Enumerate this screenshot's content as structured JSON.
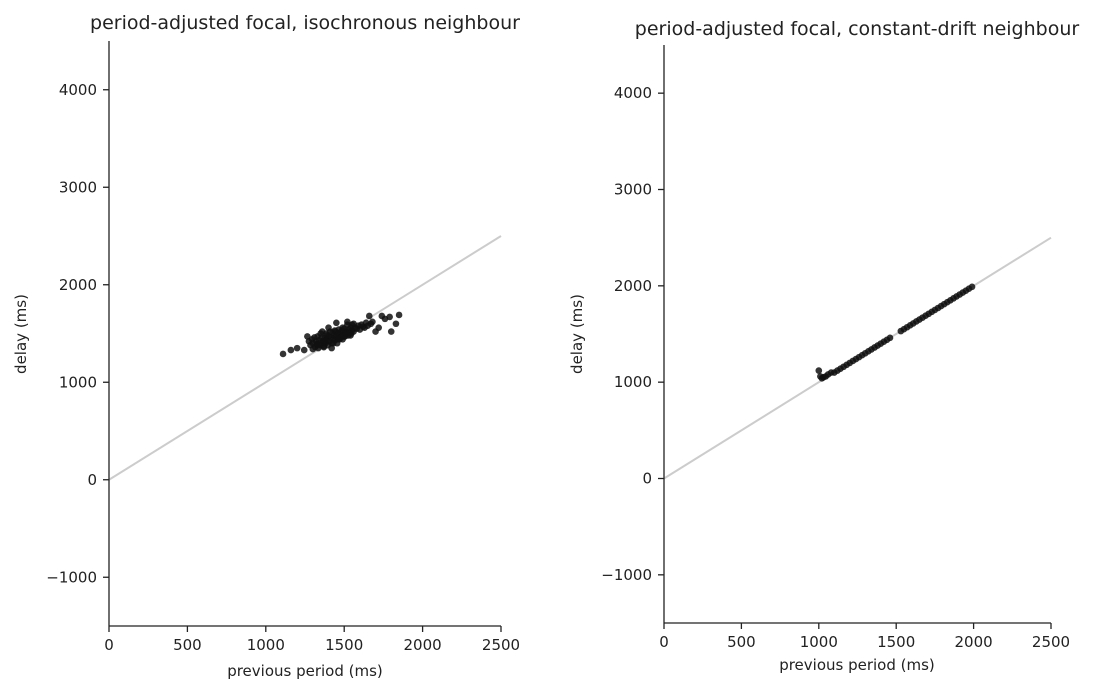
{
  "chart_data": [
    {
      "type": "scatter",
      "title": "period-adjusted focal, isochronous neighbour",
      "xlabel": "previous period (ms)",
      "ylabel": "delay (ms)",
      "xlim": [
        0,
        2500
      ],
      "ylim": [
        -1500,
        4500
      ],
      "xticks": [
        0,
        500,
        1000,
        1500,
        2000,
        2500
      ],
      "xtick_labels": [
        "0",
        "500",
        "1000",
        "1500",
        "2000",
        "2500"
      ],
      "yticks": [
        -1000,
        0,
        1000,
        2000,
        3000,
        4000
      ],
      "ytick_labels": [
        "−1000",
        "0",
        "1000",
        "2000",
        "3000",
        "4000"
      ],
      "grid": false,
      "reference_line": {
        "x": [
          0,
          2500
        ],
        "y": [
          0,
          2500
        ],
        "color": "#cccccc"
      },
      "marker_color": "#111111",
      "series": [
        {
          "x": [
            1110,
            1160,
            1200,
            1245,
            1265,
            1275,
            1285,
            1295,
            1300,
            1310,
            1315,
            1320,
            1325,
            1330,
            1335,
            1340,
            1345,
            1350,
            1355,
            1360,
            1365,
            1370,
            1375,
            1380,
            1385,
            1390,
            1395,
            1400,
            1405,
            1410,
            1415,
            1420,
            1425,
            1430,
            1435,
            1440,
            1445,
            1450,
            1455,
            1460,
            1465,
            1470,
            1475,
            1480,
            1485,
            1490,
            1495,
            1500,
            1505,
            1510,
            1515,
            1520,
            1525,
            1530,
            1535,
            1540,
            1545,
            1550,
            1560,
            1570,
            1580,
            1590,
            1600,
            1610,
            1620,
            1630,
            1640,
            1650,
            1660,
            1670,
            1680,
            1700,
            1720,
            1740,
            1760,
            1790,
            1800,
            1830,
            1850,
            1350,
            1400,
            1450,
            1500,
            1420,
            1380,
            1470,
            1520,
            1330,
            1440,
            1480,
            1560,
            1300,
            1390,
            1460,
            1510,
            1550,
            1370,
            1430,
            1490,
            1540
          ],
          "y": [
            1290,
            1330,
            1350,
            1330,
            1470,
            1420,
            1380,
            1440,
            1400,
            1460,
            1360,
            1420,
            1390,
            1470,
            1350,
            1430,
            1400,
            1380,
            1460,
            1520,
            1420,
            1360,
            1450,
            1400,
            1500,
            1440,
            1380,
            1470,
            1420,
            1520,
            1460,
            1400,
            1510,
            1450,
            1480,
            1430,
            1520,
            1470,
            1400,
            1500,
            1540,
            1460,
            1510,
            1480,
            1530,
            1440,
            1490,
            1550,
            1470,
            1520,
            1500,
            1620,
            1480,
            1540,
            1510,
            1560,
            1500,
            1530,
            1520,
            1560,
            1550,
            1580,
            1540,
            1590,
            1570,
            1560,
            1610,
            1580,
            1680,
            1600,
            1620,
            1520,
            1560,
            1680,
            1650,
            1670,
            1520,
            1600,
            1690,
            1500,
            1560,
            1610,
            1470,
            1350,
            1420,
            1440,
            1590,
            1380,
            1530,
            1460,
            1600,
            1340,
            1480,
            1440,
            1510,
            1590,
            1370,
            1400,
            1560,
            1480
          ]
        }
      ]
    },
    {
      "type": "scatter",
      "title": "period-adjusted focal, constant-drift neighbour",
      "xlabel": "previous period (ms)",
      "ylabel": "delay (ms)",
      "xlim": [
        0,
        2500
      ],
      "ylim": [
        -1500,
        4500
      ],
      "xticks": [
        0,
        500,
        1000,
        1500,
        2000,
        2500
      ],
      "xtick_labels": [
        "0",
        "500",
        "1000",
        "1500",
        "2000",
        "2500"
      ],
      "yticks": [
        -1000,
        0,
        1000,
        2000,
        3000,
        4000
      ],
      "ytick_labels": [
        "−1000",
        "0",
        "1000",
        "2000",
        "3000",
        "4000"
      ],
      "grid": false,
      "reference_line": {
        "x": [
          0,
          2500
        ],
        "y": [
          0,
          2500
        ],
        "color": "#cccccc"
      },
      "marker_color": "#111111",
      "series": [
        {
          "x": [
            1000,
            1010,
            1020,
            1030,
            1045,
            1060,
            1080,
            1100,
            1120,
            1140,
            1160,
            1180,
            1200,
            1220,
            1240,
            1260,
            1280,
            1300,
            1320,
            1340,
            1360,
            1380,
            1400,
            1420,
            1440,
            1460,
            1530,
            1550,
            1570,
            1590,
            1610,
            1630,
            1650,
            1670,
            1690,
            1710,
            1730,
            1750,
            1770,
            1790,
            1810,
            1830,
            1850,
            1870,
            1890,
            1910,
            1930,
            1950,
            1970,
            1990
          ],
          "y": [
            1120,
            1060,
            1040,
            1050,
            1060,
            1080,
            1100,
            1100,
            1120,
            1140,
            1160,
            1180,
            1200,
            1220,
            1240,
            1260,
            1280,
            1300,
            1320,
            1340,
            1360,
            1380,
            1400,
            1420,
            1440,
            1460,
            1530,
            1550,
            1570,
            1590,
            1610,
            1630,
            1650,
            1670,
            1690,
            1710,
            1730,
            1750,
            1770,
            1790,
            1810,
            1830,
            1850,
            1870,
            1890,
            1910,
            1930,
            1950,
            1970,
            1990
          ]
        }
      ]
    }
  ]
}
